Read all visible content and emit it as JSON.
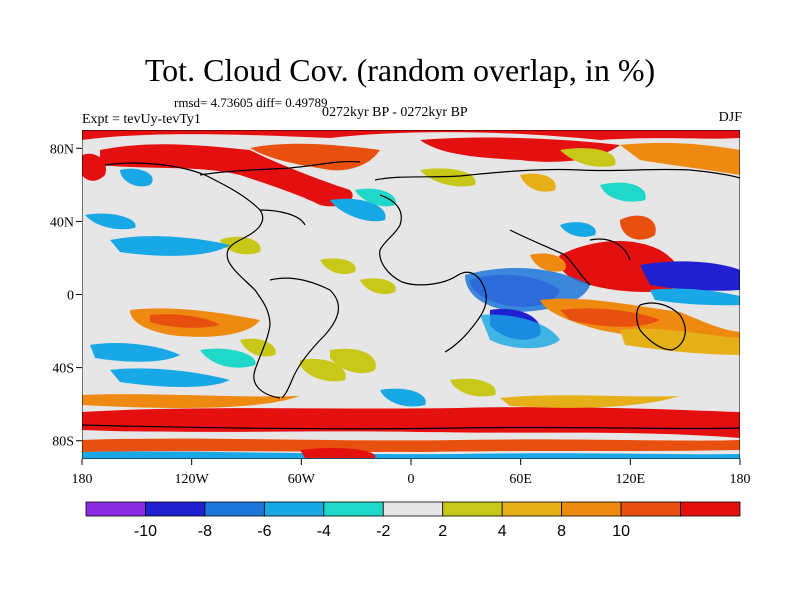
{
  "header": {
    "title": "Tot. Cloud Cov. (random overlap, in %)",
    "stats": "rmsd= 4.73605 diff= 0.49789",
    "experiment": "Expt = tevUy-tevTy1",
    "period": "0272kyr BP - 0272kyr BP",
    "season": "DJF"
  },
  "axes": {
    "y_ticks": [
      {
        "label": "80N",
        "lat": 80
      },
      {
        "label": "40N",
        "lat": 40
      },
      {
        "label": "0",
        "lat": 0
      },
      {
        "label": "40S",
        "lat": -40
      },
      {
        "label": "80S",
        "lat": -80
      }
    ],
    "x_ticks": [
      {
        "label": "180",
        "lon": -180
      },
      {
        "label": "120W",
        "lon": -120
      },
      {
        "label": "60W",
        "lon": -60
      },
      {
        "label": "0",
        "lon": 0
      },
      {
        "label": "60E",
        "lon": 60
      },
      {
        "label": "120E",
        "lon": 120
      },
      {
        "label": "180",
        "lon": 180
      }
    ],
    "lon_range": [
      -180,
      180
    ],
    "lat_range": [
      -90,
      90
    ]
  },
  "colorbar": {
    "colors": [
      "#8a2be2",
      "#2020d0",
      "#1c75d8",
      "#18a8e6",
      "#20d8c8",
      "#e6e6e6",
      "#c8c818",
      "#e6b018",
      "#ee8a10",
      "#e85010",
      "#e41010"
    ],
    "labels": [
      "-10",
      "-8",
      "-6",
      "-4",
      "-2",
      "2",
      "4",
      "8",
      "10"
    ]
  },
  "colors": {
    "land_outline": "#000000",
    "background": "#e6e6e6"
  }
}
